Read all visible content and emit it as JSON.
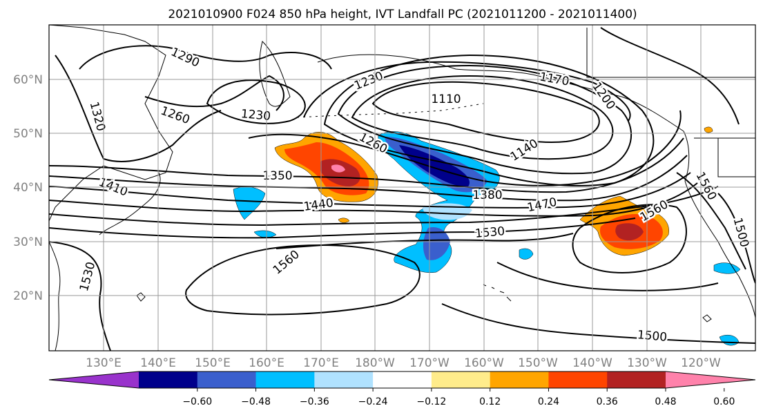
{
  "title": "2021010900 F024 850 hPa height, IVT Landfall PC (2021011200 - 2021011400)",
  "lat_labels": [
    "60°N",
    "50°N",
    "40°N",
    "30°N",
    "20°N"
  ],
  "lon_labels": [
    "130°E",
    "140°E",
    "150°E",
    "160°E",
    "170°E",
    "180°W",
    "170°W",
    "160°W",
    "150°W",
    "140°W",
    "130°W",
    "120°W"
  ],
  "contour_labels": [
    "1290",
    "1320",
    "1260",
    "1230",
    "1230",
    "1110",
    "1170",
    "1200",
    "1260",
    "1140",
    "1350",
    "1380",
    "1410",
    "1440",
    "1470",
    "1530",
    "1560",
    "1560",
    "1500",
    "1530",
    "1560",
    "1500"
  ],
  "colorbar": {
    "colors": [
      "#9933cc",
      "#00008b",
      "#3a5fcd",
      "#00bfff",
      "#b0e2ff",
      "#ffffff",
      "#ffec8b",
      "#ffa500",
      "#ff4500",
      "#b22222",
      "#ff82ab"
    ],
    "ticks": [
      "−0.60",
      "−0.48",
      "−0.36",
      "−0.24",
      "−0.12",
      "0.12",
      "0.24",
      "0.36",
      "0.48",
      "0.60"
    ]
  }
}
